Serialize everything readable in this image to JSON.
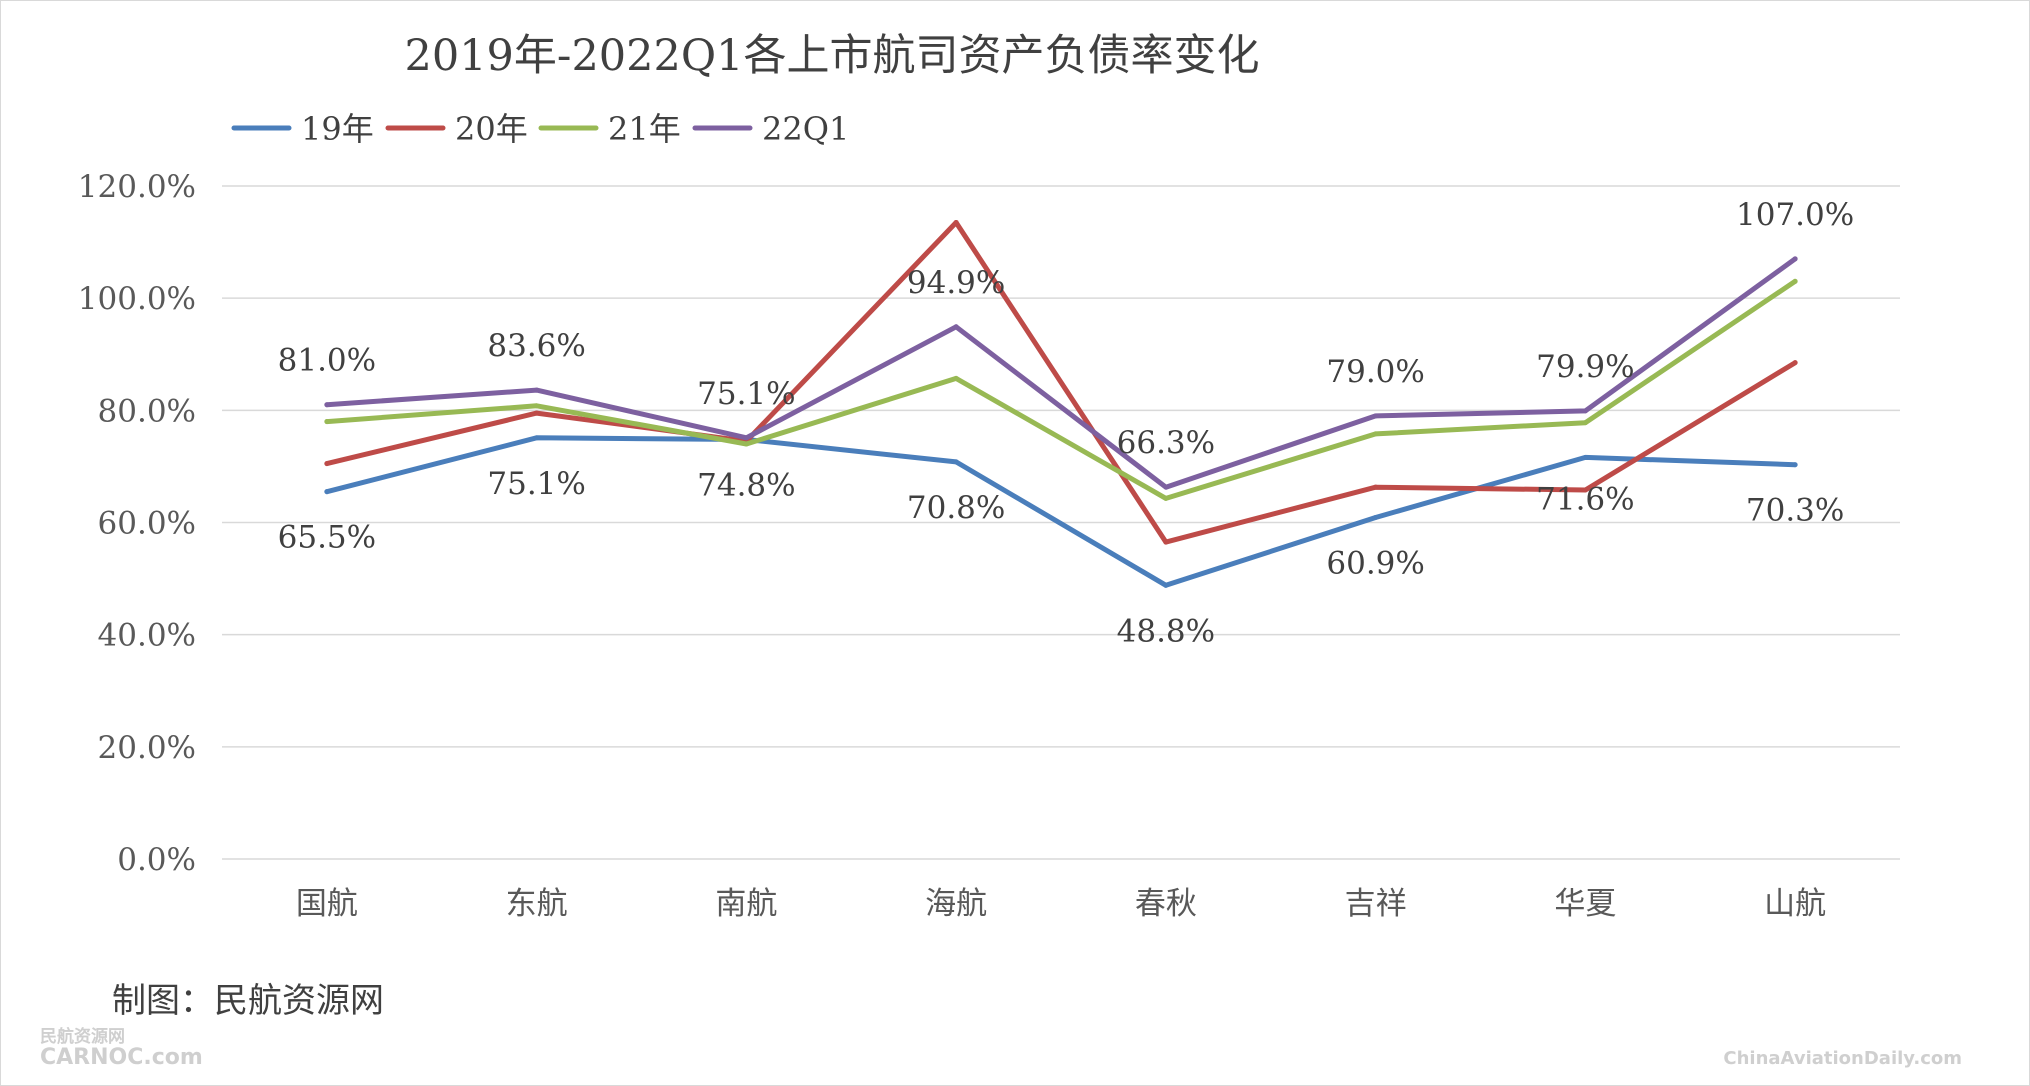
{
  "chart_data": {
    "type": "line",
    "title": "2019年-2022Q1各上市航司资产负债率变化",
    "categories": [
      "国航",
      "东航",
      "南航",
      "海航",
      "春秋",
      "吉祥",
      "华夏",
      "山航"
    ],
    "series": [
      {
        "name": "19年",
        "color": "#4a7ebb",
        "values": [
          65.5,
          75.1,
          74.8,
          70.8,
          48.8,
          60.9,
          71.6,
          70.3
        ]
      },
      {
        "name": "20年",
        "color": "#be4b48",
        "values": [
          70.5,
          79.5,
          74.5,
          113.5,
          56.5,
          66.3,
          65.8,
          88.5
        ]
      },
      {
        "name": "21年",
        "color": "#98b954",
        "values": [
          78.0,
          80.8,
          74.0,
          85.7,
          64.3,
          75.8,
          77.8,
          103.0
        ]
      },
      {
        "name": "22Q1",
        "color": "#7d60a0",
        "values": [
          81.0,
          83.6,
          75.1,
          94.9,
          66.3,
          79.0,
          79.9,
          107.0
        ]
      }
    ],
    "data_labels": [
      {
        "series": "19年",
        "labels": [
          "65.5%",
          "75.1%",
          "74.8%",
          "70.8%",
          "48.8%",
          "60.9%",
          "71.6%",
          "70.3%"
        ]
      },
      {
        "series": "22Q1",
        "labels": [
          "81.0%",
          "83.6%",
          "75.1%",
          "94.9%",
          "66.3%",
          "79.0%",
          "79.9%",
          "107.0%"
        ]
      }
    ],
    "y_ticks": [
      "0.0%",
      "20.0%",
      "40.0%",
      "60.0%",
      "80.0%",
      "100.0%",
      "120.0%"
    ],
    "ylim": [
      0,
      120
    ],
    "grid": true,
    "legend_position": "top-left",
    "xlabel": "",
    "ylabel": ""
  },
  "credit": "制图：民航资源网",
  "watermark_left": "民航资源网",
  "watermark_left_sub": "CARNOC.com",
  "watermark_right": "ChinaAviationDaily.com",
  "colors": {
    "grid": "#d9d9d9",
    "text": "#404040",
    "axis_text": "#595959"
  }
}
